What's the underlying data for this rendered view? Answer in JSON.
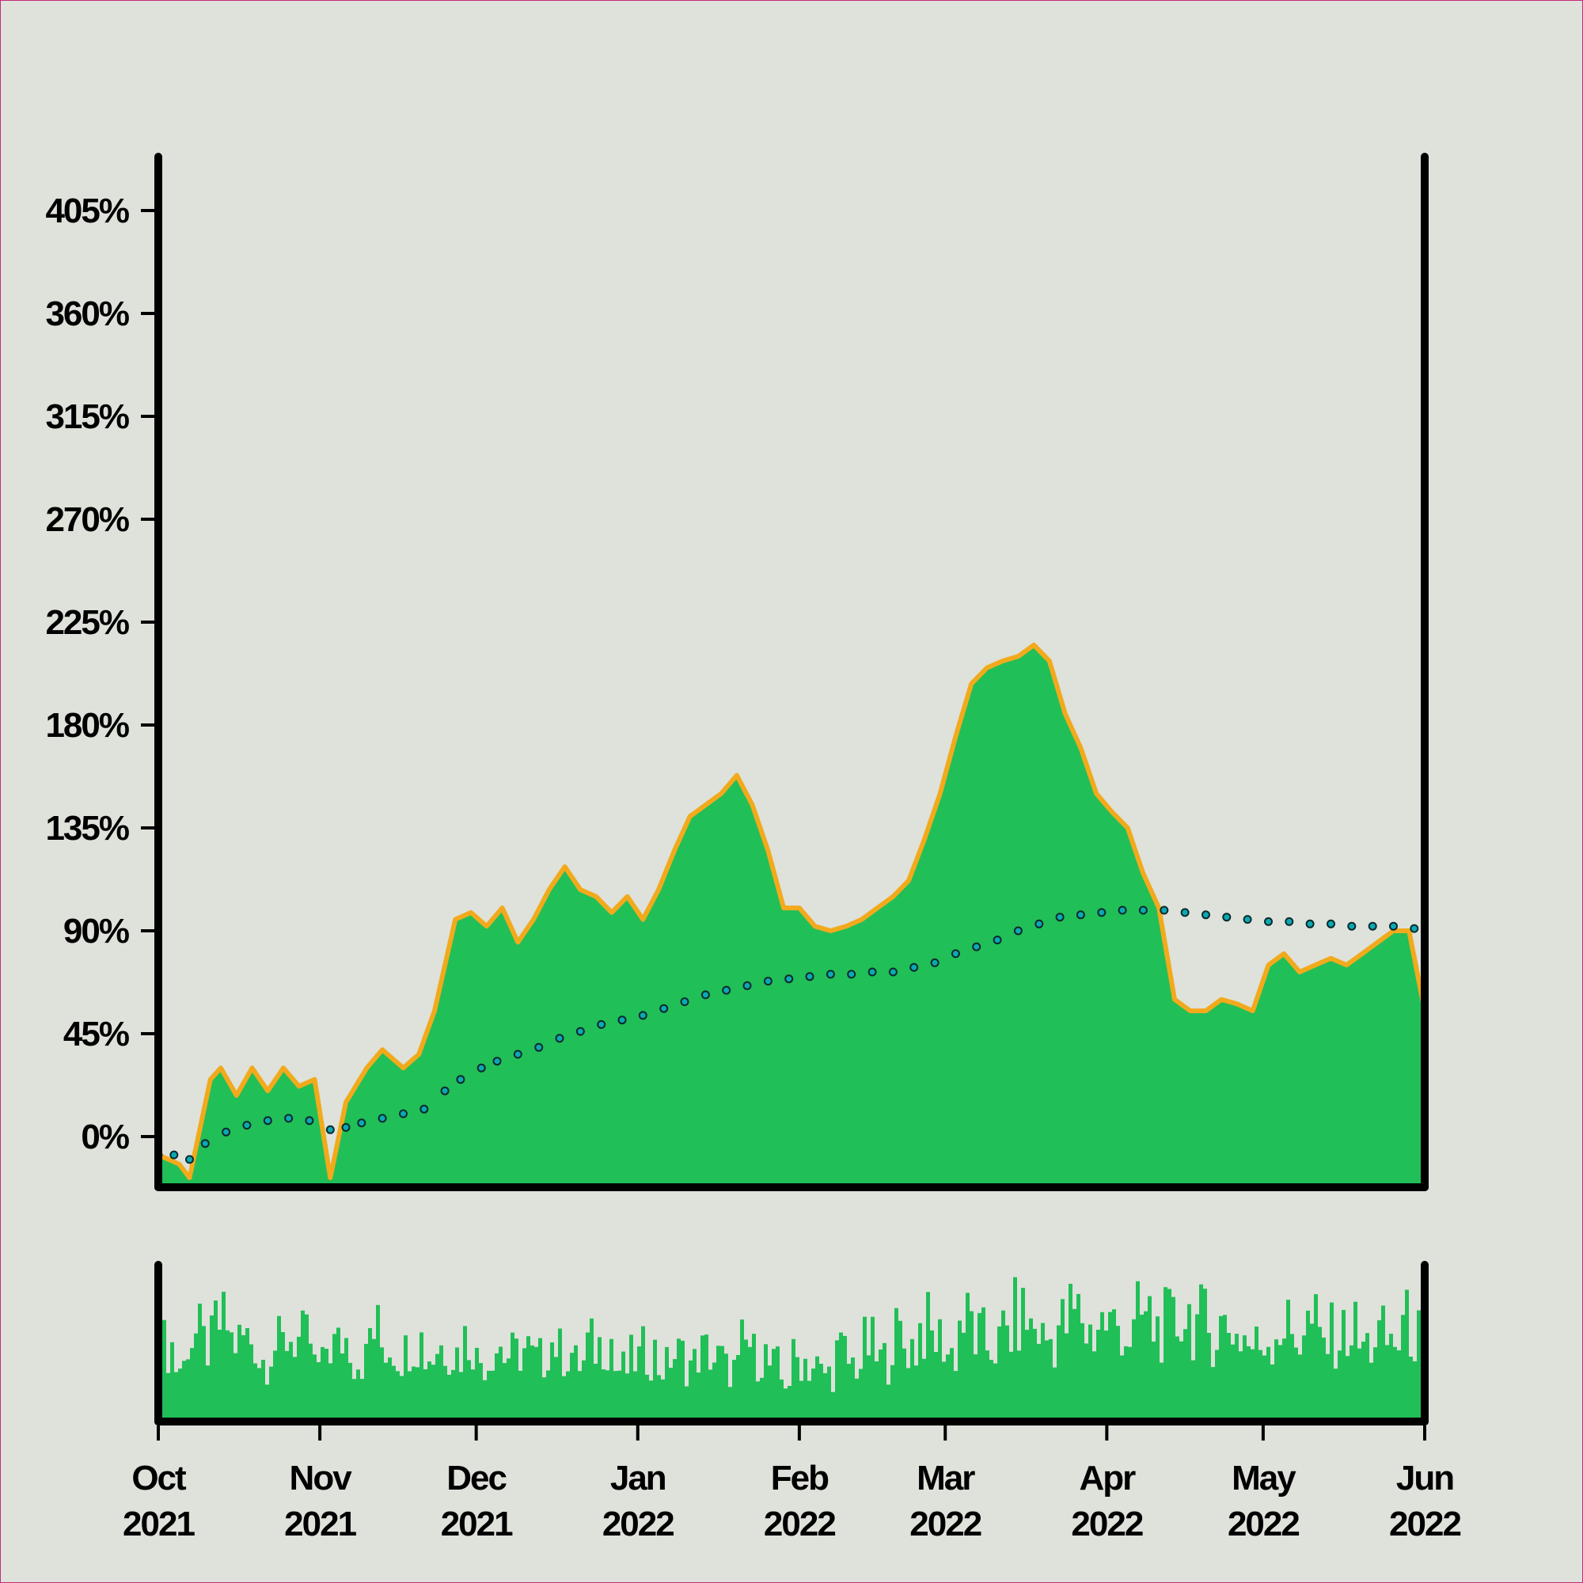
{
  "chart_data": [
    {
      "type": "area",
      "title": "",
      "xlabel": "",
      "ylabel": "",
      "y_ticks": [
        "0%",
        "45%",
        "90%",
        "135%",
        "180%",
        "225%",
        "270%",
        "315%",
        "360%",
        "405%"
      ],
      "ylim": [
        -20,
        430
      ],
      "xlim": [
        "2021-10-01",
        "2022-06-01"
      ],
      "grid": false,
      "legend": "none",
      "colors": {
        "fill": "#21bf57",
        "outline": "#f2aa1c",
        "trend_marker": "#0aa9b4",
        "axis": "#000000",
        "background": "#dee2da"
      },
      "series": [
        {
          "values": [
            [
              0,
              -8
            ],
            [
              4,
              -12
            ],
            [
              6,
              -18
            ],
            [
              10,
              25
            ],
            [
              12,
              30
            ],
            [
              15,
              18
            ],
            [
              18,
              30
            ],
            [
              21,
              20
            ],
            [
              24,
              30
            ],
            [
              27,
              22
            ],
            [
              30,
              25
            ],
            [
              33,
              -18
            ],
            [
              36,
              15
            ],
            [
              40,
              30
            ],
            [
              43,
              38
            ],
            [
              47,
              30
            ],
            [
              50,
              36
            ],
            [
              53,
              55
            ],
            [
              57,
              95
            ],
            [
              60,
              98
            ],
            [
              63,
              92
            ],
            [
              66,
              100
            ],
            [
              69,
              85
            ],
            [
              72,
              95
            ],
            [
              75,
              108
            ],
            [
              78,
              118
            ],
            [
              81,
              108
            ],
            [
              84,
              105
            ],
            [
              87,
              98
            ],
            [
              90,
              105
            ],
            [
              93,
              95
            ],
            [
              96,
              108
            ],
            [
              99,
              125
            ],
            [
              102,
              140
            ],
            [
              105,
              145
            ],
            [
              108,
              150
            ],
            [
              111,
              158
            ],
            [
              114,
              145
            ],
            [
              117,
              125
            ],
            [
              120,
              100
            ],
            [
              123,
              100
            ],
            [
              126,
              92
            ],
            [
              129,
              90
            ],
            [
              132,
              92
            ],
            [
              135,
              95
            ],
            [
              138,
              100
            ],
            [
              141,
              105
            ],
            [
              144,
              112
            ],
            [
              147,
              130
            ],
            [
              150,
              150
            ],
            [
              153,
              175
            ],
            [
              156,
              198
            ],
            [
              159,
              205
            ],
            [
              162,
              208
            ],
            [
              165,
              210
            ],
            [
              168,
              215
            ],
            [
              171,
              208
            ],
            [
              174,
              185
            ],
            [
              177,
              170
            ],
            [
              180,
              150
            ],
            [
              183,
              142
            ],
            [
              186,
              135
            ],
            [
              189,
              115
            ],
            [
              192,
              100
            ],
            [
              195,
              60
            ],
            [
              198,
              55
            ],
            [
              201,
              55
            ],
            [
              204,
              60
            ],
            [
              207,
              58
            ],
            [
              210,
              55
            ],
            [
              213,
              75
            ],
            [
              216,
              80
            ],
            [
              219,
              72
            ],
            [
              222,
              75
            ],
            [
              225,
              78
            ],
            [
              228,
              75
            ],
            [
              231,
              80
            ],
            [
              234,
              85
            ],
            [
              237,
              90
            ],
            [
              240,
              90
            ],
            [
              243,
              55
            ],
            [
              246,
              15
            ],
            [
              249,
              20
            ],
            [
              252,
              22
            ],
            [
              255,
              15
            ],
            [
              258,
              25
            ],
            [
              261,
              20
            ],
            [
              264,
              18
            ],
            [
              267,
              8
            ],
            [
              270,
              15
            ],
            [
              273,
              20
            ],
            [
              276,
              25
            ],
            [
              279,
              15
            ],
            [
              282,
              5
            ],
            [
              285,
              2
            ],
            [
              288,
              5
            ],
            [
              291,
              10
            ],
            [
              294,
              15
            ],
            [
              297,
              20
            ],
            [
              300,
              25
            ],
            [
              303,
              28
            ],
            [
              306,
              35
            ],
            [
              309,
              50
            ],
            [
              312,
              55
            ],
            [
              315,
              45
            ],
            [
              318,
              65
            ],
            [
              321,
              85
            ],
            [
              324,
              65
            ],
            [
              326,
              50
            ]
          ]
        },
        {
          "values": [
            [
              0,
              -8
            ],
            [
              3,
              -8
            ],
            [
              6,
              -10
            ],
            [
              9,
              -3
            ],
            [
              13,
              2
            ],
            [
              17,
              5
            ],
            [
              21,
              7
            ],
            [
              25,
              8
            ],
            [
              29,
              7
            ],
            [
              33,
              3
            ],
            [
              36,
              4
            ],
            [
              39,
              6
            ],
            [
              43,
              8
            ],
            [
              47,
              10
            ],
            [
              51,
              12
            ],
            [
              55,
              20
            ],
            [
              58,
              25
            ],
            [
              62,
              30
            ],
            [
              65,
              33
            ],
            [
              69,
              36
            ],
            [
              73,
              39
            ],
            [
              77,
              43
            ],
            [
              81,
              46
            ],
            [
              85,
              49
            ],
            [
              89,
              51
            ],
            [
              93,
              53
            ],
            [
              97,
              56
            ],
            [
              101,
              59
            ],
            [
              105,
              62
            ],
            [
              109,
              64
            ],
            [
              113,
              66
            ],
            [
              117,
              68
            ],
            [
              121,
              69
            ],
            [
              125,
              70
            ],
            [
              129,
              71
            ],
            [
              133,
              71
            ],
            [
              137,
              72
            ],
            [
              141,
              72
            ],
            [
              145,
              74
            ],
            [
              149,
              76
            ],
            [
              153,
              80
            ],
            [
              157,
              83
            ],
            [
              161,
              86
            ],
            [
              165,
              90
            ],
            [
              169,
              93
            ],
            [
              173,
              96
            ],
            [
              177,
              97
            ],
            [
              181,
              98
            ],
            [
              185,
              99
            ],
            [
              189,
              99
            ],
            [
              193,
              99
            ],
            [
              197,
              98
            ],
            [
              201,
              97
            ],
            [
              205,
              96
            ],
            [
              209,
              95
            ],
            [
              213,
              94
            ],
            [
              217,
              94
            ],
            [
              221,
              93
            ],
            [
              225,
              93
            ],
            [
              229,
              92
            ],
            [
              233,
              92
            ],
            [
              237,
              92
            ],
            [
              241,
              91
            ],
            [
              245,
              90
            ],
            [
              249,
              89
            ],
            [
              253,
              88
            ],
            [
              257,
              87
            ],
            [
              261,
              86
            ],
            [
              265,
              85
            ],
            [
              269,
              84
            ],
            [
              273,
              83
            ],
            [
              277,
              82
            ],
            [
              281,
              81
            ],
            [
              285,
              80
            ],
            [
              289,
              79
            ],
            [
              293,
              78
            ],
            [
              297,
              77
            ],
            [
              301,
              77
            ],
            [
              305,
              76
            ],
            [
              309,
              75
            ],
            [
              313,
              75
            ],
            [
              317,
              74
            ],
            [
              321,
              74
            ],
            [
              325,
              74
            ]
          ]
        }
      ]
    },
    {
      "type": "bar",
      "title": "",
      "xlabel": "",
      "ylabel": "",
      "x_ticks": [
        "Oct\n2021",
        "Nov\n2021",
        "Dec\n2021",
        "Jan\n2022",
        "Feb\n2022",
        "Mar\n2022",
        "Apr\n2022",
        "May\n2022",
        "Jun\n2022"
      ],
      "x_tick_days": [
        0,
        31,
        61,
        92,
        123,
        151,
        182,
        212,
        243
      ],
      "xlim_days": [
        0,
        243
      ],
      "ylim": [
        0,
        1
      ],
      "grid": false,
      "series": [
        {
          "levels": [
            0.55,
            0.4,
            0.62,
            0.55,
            0.7,
            0.58,
            0.6,
            0.45,
            0.55,
            0.62,
            0.58,
            0.4,
            0.55,
            0.6,
            0.45,
            0.65,
            0.55,
            0.5,
            0.6,
            0.48,
            0.55,
            0.5,
            0.6,
            0.45,
            0.55,
            0.48,
            0.52,
            0.45,
            0.58,
            0.5,
            0.42,
            0.55,
            0.6,
            0.38,
            0.45,
            0.5,
            0.4,
            0.48,
            0.42,
            0.5,
            0.45,
            0.38,
            0.55,
            0.48,
            0.4,
            0.3,
            0.45,
            0.4,
            0.35,
            0.5,
            0.42,
            0.55,
            0.45,
            0.62,
            0.55,
            0.68,
            0.6,
            0.5,
            0.72,
            0.6,
            0.55,
            0.65,
            0.75,
            0.68,
            0.6,
            0.7,
            0.78,
            0.65,
            0.72,
            0.7,
            0.62,
            0.75,
            0.68,
            0.7,
            0.78,
            0.72,
            0.65,
            0.7,
            0.62,
            0.55,
            0.6,
            0.68,
            0.62,
            0.7,
            0.58,
            0.62,
            0.66,
            0.55,
            0.62,
            0.58,
            0.7,
            0.62
          ]
        }
      ]
    }
  ]
}
